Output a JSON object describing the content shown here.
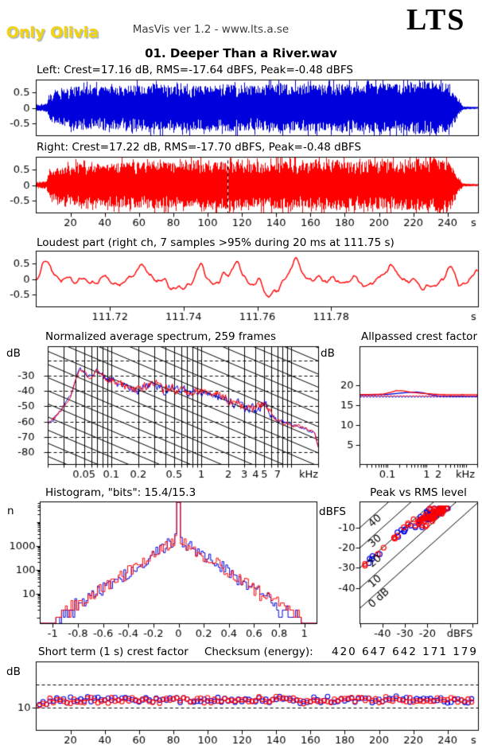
{
  "header": {
    "artist_logo": "Only Olivia",
    "app_info": "MasVis ver 1.2 - www.lts.a.se",
    "brand": "LTS"
  },
  "title": "01. Deeper Than a River.wav",
  "panels": {
    "left_wave": {
      "label": "Left: Crest=17.16 dB, RMS=-17.64 dBFS, Peak=-0.48 dBFS"
    },
    "right_wave": {
      "label": "Right: Crest=17.22 dB, RMS=-17.70 dBFS, Peak=-0.48 dBFS"
    },
    "loudest": {
      "label": "Loudest part (right ch, 7 samples >95% during 20 ms at 111.75 s)"
    },
    "spectrum": {
      "label": "Normalized average spectrum, 259 frames",
      "ylabel": "dB"
    },
    "allpass": {
      "label": "Allpassed crest factor",
      "ylabel": "dB"
    },
    "histogram": {
      "label": "Histogram, \"bits\": 15.4/15.3",
      "ylabel": "n"
    },
    "peak_rms": {
      "label": "Peak vs RMS level",
      "ylabel": "dBFS"
    },
    "short_term": {
      "label": "Short term (1 s) crest factor",
      "ylabel": "dB"
    },
    "checksum": {
      "label": "Checksum (energy):",
      "value": "420 647 642 171 179"
    }
  },
  "colors": {
    "left_channel": "#0000dd",
    "right_channel": "#ff0000",
    "grid": "#000000",
    "logo_yellow": "#f2d40e",
    "header_gray": "#3c3c3c"
  },
  "chart_data": [
    {
      "id": "left_waveform",
      "type": "waveform",
      "channel": "left",
      "color": "#0000dd",
      "duration_s": 258,
      "ylim": [
        -0.9,
        0.9
      ],
      "yticks": [
        0.5,
        0,
        -0.5
      ],
      "crest_db": 17.16,
      "rms_dbfs": -17.64,
      "peak_dbfs": -0.48,
      "seed": 11,
      "envelope": [
        [
          0,
          0.1
        ],
        [
          6,
          0.12
        ],
        [
          8,
          0.45
        ],
        [
          15,
          0.58
        ],
        [
          25,
          0.7
        ],
        [
          40,
          0.68
        ],
        [
          55,
          0.74
        ],
        [
          70,
          0.76
        ],
        [
          85,
          0.7
        ],
        [
          100,
          0.74
        ],
        [
          112,
          0.78
        ],
        [
          125,
          0.71
        ],
        [
          140,
          0.78
        ],
        [
          155,
          0.74
        ],
        [
          170,
          0.79
        ],
        [
          185,
          0.76
        ],
        [
          200,
          0.8
        ],
        [
          210,
          0.77
        ],
        [
          220,
          0.83
        ],
        [
          232,
          0.86
        ],
        [
          240,
          0.78
        ],
        [
          244,
          0.5
        ],
        [
          247,
          0.22
        ],
        [
          249,
          0.05
        ],
        [
          258,
          0.03
        ]
      ]
    },
    {
      "id": "right_waveform",
      "type": "waveform",
      "channel": "right",
      "color": "#ff0000",
      "duration_s": 258,
      "ylim": [
        -0.9,
        0.9
      ],
      "yticks": [
        0.5,
        0,
        -0.5
      ],
      "xticks": [
        20,
        40,
        60,
        80,
        100,
        120,
        140,
        160,
        180,
        200,
        220,
        240
      ],
      "xunit": "s",
      "marker_s": 111.75,
      "crest_db": 17.22,
      "rms_dbfs": -17.7,
      "peak_dbfs": -0.48,
      "seed": 23,
      "envelope": [
        [
          0,
          0.1
        ],
        [
          6,
          0.12
        ],
        [
          8,
          0.45
        ],
        [
          15,
          0.58
        ],
        [
          25,
          0.7
        ],
        [
          40,
          0.68
        ],
        [
          55,
          0.74
        ],
        [
          70,
          0.76
        ],
        [
          85,
          0.7
        ],
        [
          100,
          0.74
        ],
        [
          112,
          0.78
        ],
        [
          125,
          0.71
        ],
        [
          140,
          0.78
        ],
        [
          155,
          0.74
        ],
        [
          170,
          0.79
        ],
        [
          185,
          0.76
        ],
        [
          200,
          0.8
        ],
        [
          210,
          0.77
        ],
        [
          220,
          0.83
        ],
        [
          232,
          0.86
        ],
        [
          240,
          0.78
        ],
        [
          244,
          0.5
        ],
        [
          247,
          0.22
        ],
        [
          249,
          0.05
        ],
        [
          258,
          0.03
        ]
      ]
    },
    {
      "id": "loudest_part",
      "type": "line",
      "color": "#ff0000",
      "xlim_s": [
        111.7,
        111.82
      ],
      "xticks": [
        111.72,
        111.74,
        111.76,
        111.78
      ],
      "xunit": "s",
      "ylim": [
        -0.95,
        0.95
      ],
      "yticks": [
        0.5,
        0,
        -0.5
      ],
      "seed": 7,
      "sine_components": [
        [
          5.3,
          0.26
        ],
        [
          8.9,
          0.24
        ],
        [
          14.2,
          0.17
        ],
        [
          23,
          0.12
        ],
        [
          37,
          0.07
        ],
        [
          61,
          0.04
        ]
      ]
    },
    {
      "id": "spectrum",
      "type": "line",
      "title": "Normalized average spectrum, 259 frames",
      "xlim_khz": [
        0.02,
        20
      ],
      "ylim_db": [
        -88,
        -11
      ],
      "yticks": [
        -30,
        -40,
        -50,
        -60,
        -70,
        -80
      ],
      "dashed_levels": [
        -20,
        -30,
        -40,
        -50,
        -60,
        -70,
        -80
      ],
      "xticks": [
        0.05,
        0.1,
        0.2,
        0.5,
        1,
        2,
        3,
        4,
        5,
        7
      ],
      "xunit": "kHz",
      "ylabel": "dB",
      "noise_db_mid": 3.3,
      "noise_db_edge": 1.4,
      "series": [
        {
          "name": "left",
          "color": "#0000dd",
          "seed": 31
        },
        {
          "name": "right",
          "color": "#ff0000",
          "seed": 41
        }
      ],
      "base_points_khz_db": [
        [
          0.02,
          -62
        ],
        [
          0.025,
          -56
        ],
        [
          0.03,
          -50
        ],
        [
          0.035,
          -44
        ],
        [
          0.04,
          -33
        ],
        [
          0.045,
          -26
        ],
        [
          0.05,
          -27
        ],
        [
          0.055,
          -30
        ],
        [
          0.06,
          -31
        ],
        [
          0.07,
          -26.5
        ],
        [
          0.08,
          -31
        ],
        [
          0.09,
          -33
        ],
        [
          0.1,
          -33
        ],
        [
          0.12,
          -35
        ],
        [
          0.15,
          -37
        ],
        [
          0.2,
          -39
        ],
        [
          0.25,
          -37
        ],
        [
          0.3,
          -34
        ],
        [
          0.4,
          -40
        ],
        [
          0.5,
          -38
        ],
        [
          0.7,
          -40
        ],
        [
          1,
          -40
        ],
        [
          1.3,
          -42
        ],
        [
          1.7,
          -44
        ],
        [
          2,
          -46
        ],
        [
          2.5,
          -48
        ],
        [
          3,
          -50
        ],
        [
          3.5,
          -51
        ],
        [
          4,
          -52
        ],
        [
          4.5,
          -50
        ],
        [
          5,
          -47
        ],
        [
          5.5,
          -52
        ],
        [
          6,
          -56
        ],
        [
          7,
          -59
        ],
        [
          8,
          -60
        ],
        [
          9,
          -61
        ],
        [
          10,
          -62
        ],
        [
          12,
          -63
        ],
        [
          15,
          -65
        ],
        [
          18,
          -67
        ],
        [
          20,
          -77
        ]
      ]
    },
    {
      "id": "allpassed_crest",
      "type": "line",
      "title": "Allpassed crest factor",
      "xlim_khz": [
        0.02,
        20
      ],
      "ylim_db": [
        0,
        29.6
      ],
      "yticks": [
        20,
        15,
        10,
        5
      ],
      "xticks": [
        0.1,
        1,
        2
      ],
      "xunit": "kHz",
      "ylabel": "dB",
      "series": [
        {
          "name": "left",
          "color": "#0000dd",
          "style": "solid",
          "points_khz_db": [
            [
              0.02,
              17.45
            ],
            [
              0.05,
              17.5
            ],
            [
              0.1,
              17.6
            ],
            [
              0.2,
              17.9
            ],
            [
              0.35,
              18.1
            ],
            [
              0.55,
              18.2
            ],
            [
              0.8,
              18.0
            ],
            [
              1.2,
              17.6
            ],
            [
              2,
              17.2
            ],
            [
              4,
              17.1
            ],
            [
              8,
              17.1
            ],
            [
              20,
              17.05
            ]
          ]
        },
        {
          "name": "right",
          "color": "#ff0000",
          "style": "solid",
          "points_khz_db": [
            [
              0.02,
              17.55
            ],
            [
              0.05,
              17.6
            ],
            [
              0.08,
              17.7
            ],
            [
              0.12,
              18.1
            ],
            [
              0.17,
              18.55
            ],
            [
              0.25,
              18.5
            ],
            [
              0.4,
              18.15
            ],
            [
              0.7,
              17.9
            ],
            [
              1.2,
              17.75
            ],
            [
              2,
              17.6
            ],
            [
              4,
              17.5
            ],
            [
              8,
              17.55
            ],
            [
              20,
              17.5
            ]
          ]
        },
        {
          "name": "left_reference",
          "color": "#0000dd",
          "style": "dashed",
          "value_db": 17.1
        },
        {
          "name": "right_reference",
          "color": "#ff0000",
          "style": "dashed",
          "value_db": 17.3
        }
      ]
    },
    {
      "id": "histogram",
      "type": "histogram",
      "bits_left": 15.4,
      "bits_right": 15.3,
      "xlim": [
        -1.1,
        1.1
      ],
      "xticks": [
        -1,
        -0.8,
        -0.6,
        -0.4,
        -0.2,
        0,
        0.2,
        0.4,
        0.6,
        0.8,
        1
      ],
      "yticks_log": [
        10,
        100,
        1000
      ],
      "ylabel": "n",
      "peak_count": 2000,
      "spike_count": 70000,
      "log_slope_per_unit": 3.55,
      "bin_width": 0.015,
      "tail_end": 0.97,
      "series": [
        {
          "name": "left",
          "color": "#0000dd",
          "seed": 51
        },
        {
          "name": "right",
          "color": "#ff0000",
          "seed": 61
        }
      ]
    },
    {
      "id": "peak_vs_rms",
      "type": "scatter",
      "title": "Peak vs RMS level",
      "xlim_dbfs": [
        -50,
        2.3
      ],
      "ylim_dbfs": [
        -57.7,
        2.8
      ],
      "xticks": [
        -40,
        -30,
        -20
      ],
      "yticks": [
        -10,
        -20,
        -30,
        -40
      ],
      "xunit": "dBFS",
      "ylabel": "dBFS",
      "diagonals_db": [
        40,
        30,
        20,
        10,
        0
      ],
      "diagonal_unit_label": "0 dB",
      "peak_max_dbfs": -0.48,
      "clusters": [
        {
          "count": 40,
          "rms_mean": -16,
          "rms_sd": 2.2,
          "crest_mean": 13.5,
          "crest_sd": 1.3
        },
        {
          "count": 18,
          "rms_mean": -21.5,
          "rms_sd": 2.2,
          "crest_mean": 16.5,
          "crest_sd": 1.3
        },
        {
          "count": 12,
          "rms_min": -48,
          "rms_max": -26,
          "crest_mean": 19.5,
          "crest_sd": 1.0
        }
      ],
      "series": [
        {
          "name": "left",
          "color": "#0000dd",
          "seed": 71
        },
        {
          "name": "right",
          "color": "#ff0000",
          "seed": 81
        }
      ]
    },
    {
      "id": "short_term_crest",
      "type": "scatter",
      "title": "Short term (1 s) crest factor",
      "duration_s": 258,
      "interval_s": 2,
      "ylim": [
        0,
        30
      ],
      "value_mean_db": 13.3,
      "value_spread_db": 2.4,
      "ref_lines_db": [
        10,
        20
      ],
      "yticks": [
        10
      ],
      "xticks": [
        20,
        40,
        60,
        80,
        100,
        120,
        140,
        160,
        180,
        200,
        220,
        240
      ],
      "xunit": "s",
      "ylabel": "dB",
      "series": [
        {
          "name": "left",
          "color": "#0000dd",
          "seed": 91
        },
        {
          "name": "right",
          "color": "#ff0000",
          "seed": 101
        }
      ]
    }
  ]
}
